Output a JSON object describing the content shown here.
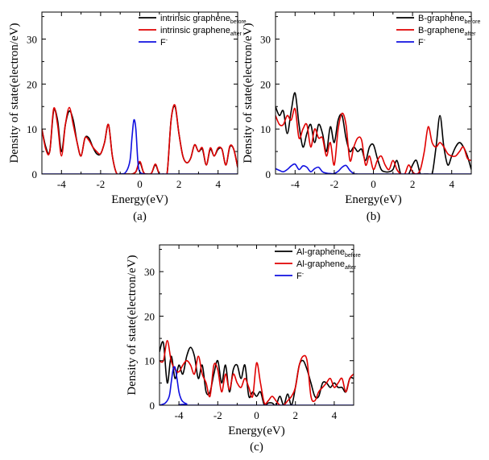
{
  "figure": {
    "background": "#ffffff",
    "series_colors": {
      "before": "#000000",
      "after": "#e00000",
      "fluorine": "#1010e0"
    }
  },
  "chart_data": [
    {
      "type": "line",
      "panel_label": "(a)",
      "xlabel": "Energy(eV)",
      "ylabel": "Density of state(electron/eV)",
      "xlim": [
        -5,
        5
      ],
      "ylim": [
        0,
        36
      ],
      "xticks": [
        -4,
        -2,
        0,
        2,
        4
      ],
      "yticks": [
        0,
        10,
        20,
        30
      ],
      "legend_position": "top-right",
      "series": [
        {
          "name": "intrinsic graphene",
          "subscript": "before",
          "color": "#000000",
          "x": [
            -5,
            -4.8,
            -4.6,
            -4.4,
            -4.2,
            -4,
            -3.8,
            -3.6,
            -3.4,
            -3.2,
            -3,
            -2.8,
            -2.6,
            -2.4,
            -2.2,
            -2,
            -1.8,
            -1.6,
            -1.4,
            -1.2,
            -1,
            -0.8,
            -0.6,
            -0.4,
            -0.2,
            0,
            0.2,
            0.4,
            0.6,
            0.8,
            1,
            1.2,
            1.4,
            1.6,
            1.8,
            2,
            2.2,
            2.4,
            2.6,
            2.8,
            3,
            3.2,
            3.4,
            3.6,
            3.8,
            4,
            4.2,
            4.4,
            4.6,
            4.8,
            5
          ],
          "y": [
            10,
            6,
            5,
            14,
            12,
            5,
            11,
            14,
            12,
            7,
            4,
            8,
            8,
            6,
            4.5,
            4.5,
            7,
            11,
            4,
            0.3,
            0,
            0,
            0,
            0,
            0.5,
            2.5,
            0.3,
            0,
            0.2,
            2,
            0,
            0,
            0.3,
            12,
            15,
            9,
            4,
            2.5,
            3.5,
            6.5,
            5,
            5.5,
            2,
            5.5,
            4,
            5.5,
            5.5,
            2,
            6,
            5.5,
            1.5
          ]
        },
        {
          "name": "intrinsic graphene",
          "subscript": "after",
          "color": "#e00000",
          "x": [
            -5,
            -4.8,
            -4.6,
            -4.4,
            -4.2,
            -4,
            -3.8,
            -3.6,
            -3.4,
            -3.2,
            -3,
            -2.8,
            -2.6,
            -2.4,
            -2.2,
            -2,
            -1.8,
            -1.6,
            -1.4,
            -1.2,
            -1,
            -0.8,
            -0.6,
            -0.4,
            -0.2,
            0,
            0.2,
            0.4,
            0.6,
            0.8,
            1,
            1.2,
            1.4,
            1.6,
            1.8,
            2,
            2.2,
            2.4,
            2.6,
            2.8,
            3,
            3.2,
            3.4,
            3.6,
            3.8,
            4,
            4.2,
            4.4,
            4.6,
            4.8,
            5
          ],
          "y": [
            10,
            5.5,
            5,
            14.5,
            11,
            4,
            11,
            14.8,
            11,
            7,
            4,
            8,
            7.5,
            6,
            5,
            4.5,
            7,
            11,
            4,
            0.3,
            0,
            0,
            0,
            0,
            0.5,
            2.8,
            0.3,
            0,
            0.2,
            2.2,
            0,
            0,
            0.3,
            12,
            15.3,
            9,
            4,
            2.5,
            3.5,
            6.5,
            5,
            5.8,
            2,
            5.8,
            4,
            5.8,
            5.5,
            2,
            6.2,
            5.5,
            1.5
          ]
        },
        {
          "name": "F",
          "superscript": "-",
          "color": "#1010e0",
          "x": [
            -5,
            -2,
            -1,
            -0.7,
            -0.5,
            -0.4,
            -0.3,
            -0.2,
            -0.1,
            0,
            0.3,
            1,
            5
          ],
          "y": [
            0,
            0,
            0,
            0.5,
            3,
            8,
            12,
            10,
            3,
            0.5,
            0,
            0,
            0
          ]
        }
      ]
    },
    {
      "type": "line",
      "panel_label": "(b)",
      "xlabel": "Energy(eV)",
      "ylabel": "Density of state(electron/eV)",
      "xlim": [
        -5,
        5
      ],
      "ylim": [
        0,
        36
      ],
      "xticks": [
        -4,
        -2,
        0,
        2,
        4
      ],
      "yticks": [
        0,
        10,
        20,
        30
      ],
      "legend_position": "top-right",
      "series": [
        {
          "name": "B-graphene",
          "subscript": "before",
          "color": "#000000",
          "x": [
            -5,
            -4.8,
            -4.6,
            -4.4,
            -4.2,
            -4,
            -3.8,
            -3.6,
            -3.4,
            -3.2,
            -3,
            -2.8,
            -2.6,
            -2.4,
            -2.2,
            -2,
            -1.8,
            -1.6,
            -1.4,
            -1.2,
            -1,
            -0.8,
            -0.6,
            -0.4,
            -0.2,
            0,
            0.2,
            0.4,
            0.6,
            0.8,
            1,
            1.2,
            1.4,
            1.6,
            1.8,
            2,
            2.2,
            2.4,
            2.6,
            2.8,
            3,
            3.2,
            3.4,
            3.6,
            3.8,
            4,
            4.2,
            4.4,
            4.6,
            4.8,
            5
          ],
          "y": [
            15,
            13,
            14,
            9,
            14,
            18,
            11,
            6,
            9,
            11,
            7,
            11,
            9,
            5,
            10.5,
            7,
            12,
            13,
            8,
            5,
            6,
            5,
            5.5,
            3,
            6,
            6.5,
            3.5,
            1,
            0.5,
            0.5,
            1,
            3,
            0,
            0,
            0,
            2,
            3,
            0,
            0,
            0,
            0,
            6,
            13,
            6,
            2,
            4,
            6,
            7,
            6,
            4,
            1
          ]
        },
        {
          "name": "B-graphene",
          "subscript": "after",
          "color": "#e00000",
          "x": [
            -5,
            -4.8,
            -4.6,
            -4.4,
            -4.2,
            -4,
            -3.8,
            -3.6,
            -3.4,
            -3.2,
            -3,
            -2.8,
            -2.6,
            -2.4,
            -2.2,
            -2,
            -1.8,
            -1.6,
            -1.4,
            -1.2,
            -1,
            -0.8,
            -0.6,
            -0.4,
            -0.2,
            0,
            0.2,
            0.4,
            0.6,
            0.8,
            1,
            1.2,
            1.4,
            1.6,
            1.8,
            2,
            2.2,
            2.4,
            2.6,
            2.8,
            3,
            3.2,
            3.4,
            3.6,
            3.8,
            4,
            4.2,
            4.4,
            4.6,
            4.8,
            5
          ],
          "y": [
            13,
            11,
            11,
            13,
            12,
            14.5,
            8,
            10,
            11,
            6,
            10,
            8,
            8,
            4,
            7,
            2,
            10,
            13.5,
            11,
            3,
            6,
            8,
            7.5,
            2,
            4,
            1,
            3,
            4,
            2,
            1,
            3,
            1,
            0,
            0,
            2,
            0.5,
            0,
            1,
            5,
            10.5,
            7,
            6,
            7,
            6,
            4.5,
            4,
            4,
            5,
            6,
            3.5,
            3
          ]
        },
        {
          "name": "F",
          "superscript": "-",
          "color": "#1010e0",
          "x": [
            -5,
            -4.8,
            -4.6,
            -4.4,
            -4.2,
            -4,
            -3.8,
            -3.6,
            -3.4,
            -3.2,
            -3,
            -2.8,
            -2.6,
            -2.4,
            -2.2,
            -2,
            -1.8,
            -1.6,
            -1.4,
            -1.2,
            -1,
            -0.8,
            -0.5,
            0,
            5
          ],
          "y": [
            1.2,
            0.8,
            0.5,
            1.0,
            1.8,
            2.2,
            1.0,
            1.8,
            1.5,
            0.5,
            1.2,
            1.5,
            0.5,
            0.2,
            0.1,
            0.1,
            0.6,
            1.5,
            1.9,
            0.8,
            0.1,
            0,
            0,
            0,
            0
          ]
        }
      ]
    },
    {
      "type": "line",
      "panel_label": "(c)",
      "xlabel": "Energy(eV)",
      "ylabel": "Density of state(electron/eV)",
      "xlim": [
        -5,
        5
      ],
      "ylim": [
        0,
        36
      ],
      "xticks": [
        -4,
        -2,
        0,
        2,
        4
      ],
      "yticks": [
        0,
        10,
        20,
        30
      ],
      "legend_position": "top-right",
      "series": [
        {
          "name": "Al-graphene",
          "subscript": "before",
          "color": "#000000",
          "x": [
            -5,
            -4.8,
            -4.6,
            -4.4,
            -4.2,
            -4,
            -3.8,
            -3.6,
            -3.4,
            -3.2,
            -3,
            -2.8,
            -2.6,
            -2.4,
            -2.2,
            -2,
            -1.8,
            -1.6,
            -1.4,
            -1.2,
            -1,
            -0.8,
            -0.6,
            -0.4,
            -0.2,
            0,
            0.2,
            0.4,
            0.6,
            0.8,
            1,
            1.2,
            1.4,
            1.6,
            1.8,
            2,
            2.2,
            2.4,
            2.6,
            2.8,
            3,
            3.2,
            3.4,
            3.6,
            3.8,
            4,
            4.2,
            4.4,
            4.6,
            4.8,
            5
          ],
          "y": [
            12,
            14,
            5,
            11,
            6,
            9,
            7,
            11,
            13,
            11,
            6,
            9,
            3,
            3,
            7,
            10,
            5,
            9,
            3,
            8,
            9,
            6,
            9,
            2,
            3,
            2,
            3,
            0,
            0.5,
            0.5,
            0,
            2,
            0,
            2.5,
            0,
            4,
            9,
            10,
            8,
            5,
            2,
            2,
            5,
            5,
            4,
            5,
            4,
            4,
            3,
            6,
            6
          ]
        },
        {
          "name": "Al-graphene",
          "subscript": "after",
          "color": "#e00000",
          "x": [
            -5,
            -4.8,
            -4.6,
            -4.4,
            -4.2,
            -4,
            -3.8,
            -3.6,
            -3.4,
            -3.2,
            -3,
            -2.8,
            -2.6,
            -2.4,
            -2.2,
            -2,
            -1.8,
            -1.6,
            -1.4,
            -1.2,
            -1,
            -0.8,
            -0.6,
            -0.4,
            -0.2,
            0,
            0.2,
            0.4,
            0.6,
            0.8,
            1,
            1.2,
            1.4,
            1.6,
            1.8,
            2,
            2.2,
            2.4,
            2.6,
            2.8,
            3,
            3.2,
            3.4,
            3.6,
            3.8,
            4,
            4.2,
            4.4,
            4.6,
            4.8,
            5
          ],
          "y": [
            10,
            10,
            14.5,
            10,
            8,
            7.5,
            9,
            10,
            9,
            7,
            11,
            7,
            5,
            2,
            9,
            8,
            3,
            7,
            3.5,
            7,
            5,
            4,
            6,
            4,
            2,
            9.5,
            5,
            0.5,
            1,
            2,
            1,
            0,
            0,
            1,
            2,
            4,
            9,
            11,
            10,
            2,
            1,
            3,
            4,
            5,
            6,
            4,
            5,
            6,
            3,
            6,
            7
          ]
        },
        {
          "name": "F",
          "superscript": "-",
          "color": "#1010e0",
          "x": [
            -5,
            -4.7,
            -4.5,
            -4.4,
            -4.3,
            -4.2,
            -4.1,
            -4,
            -3.9,
            -3.8,
            -3.6,
            -3.3,
            5
          ],
          "y": [
            0,
            0.5,
            2,
            5,
            8,
            8.5,
            6,
            3,
            1.5,
            0.8,
            0.3,
            0,
            0
          ]
        }
      ]
    }
  ]
}
